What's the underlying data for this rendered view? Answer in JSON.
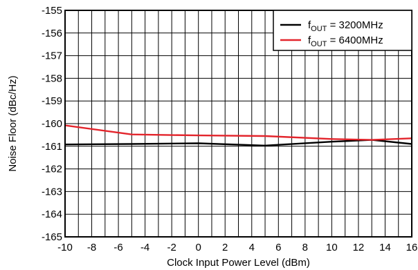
{
  "chart_data": {
    "type": "line",
    "xlabel": "Clock Input Power Level (dBm)",
    "ylabel": "Noise Floor (dBc/Hz)",
    "xlim": [
      -10,
      16
    ],
    "ylim": [
      -165,
      -155
    ],
    "x_ticks": [
      -10,
      -8,
      -6,
      -4,
      -2,
      0,
      2,
      4,
      6,
      8,
      10,
      12,
      14,
      16
    ],
    "y_ticks": [
      -155,
      -156,
      -157,
      -158,
      -159,
      -160,
      -161,
      -162,
      -163,
      -164,
      -165
    ],
    "x_tick_labels": [
      "-10",
      "-8",
      "-6",
      "-4",
      "-2",
      "0",
      "2",
      "4",
      "6",
      "8",
      "10",
      "12",
      "14",
      "16"
    ],
    "y_tick_labels": [
      "-155",
      "-156",
      "-157",
      "-158",
      "-159",
      "-160",
      "-161",
      "-162",
      "-163",
      "-164",
      "-165"
    ],
    "x_minor_step": 1,
    "grid": true,
    "legend_position": "top-right",
    "series": [
      {
        "name_prefix": "f",
        "name_sub": "OUT",
        "name_suffix": " = 3200MHz",
        "color": "#000000",
        "x": [
          -10,
          -5,
          0,
          5,
          10,
          13,
          16
        ],
        "y": [
          -160.92,
          -160.9,
          -160.87,
          -160.97,
          -160.8,
          -160.72,
          -160.9
        ]
      },
      {
        "name_prefix": "f",
        "name_sub": "OUT",
        "name_suffix": " = 6400MHz",
        "color": "#e3242b",
        "x": [
          -10,
          -5,
          0,
          5,
          10,
          13,
          16
        ],
        "y": [
          -160.08,
          -160.48,
          -160.52,
          -160.55,
          -160.68,
          -160.72,
          -160.65
        ]
      }
    ]
  }
}
